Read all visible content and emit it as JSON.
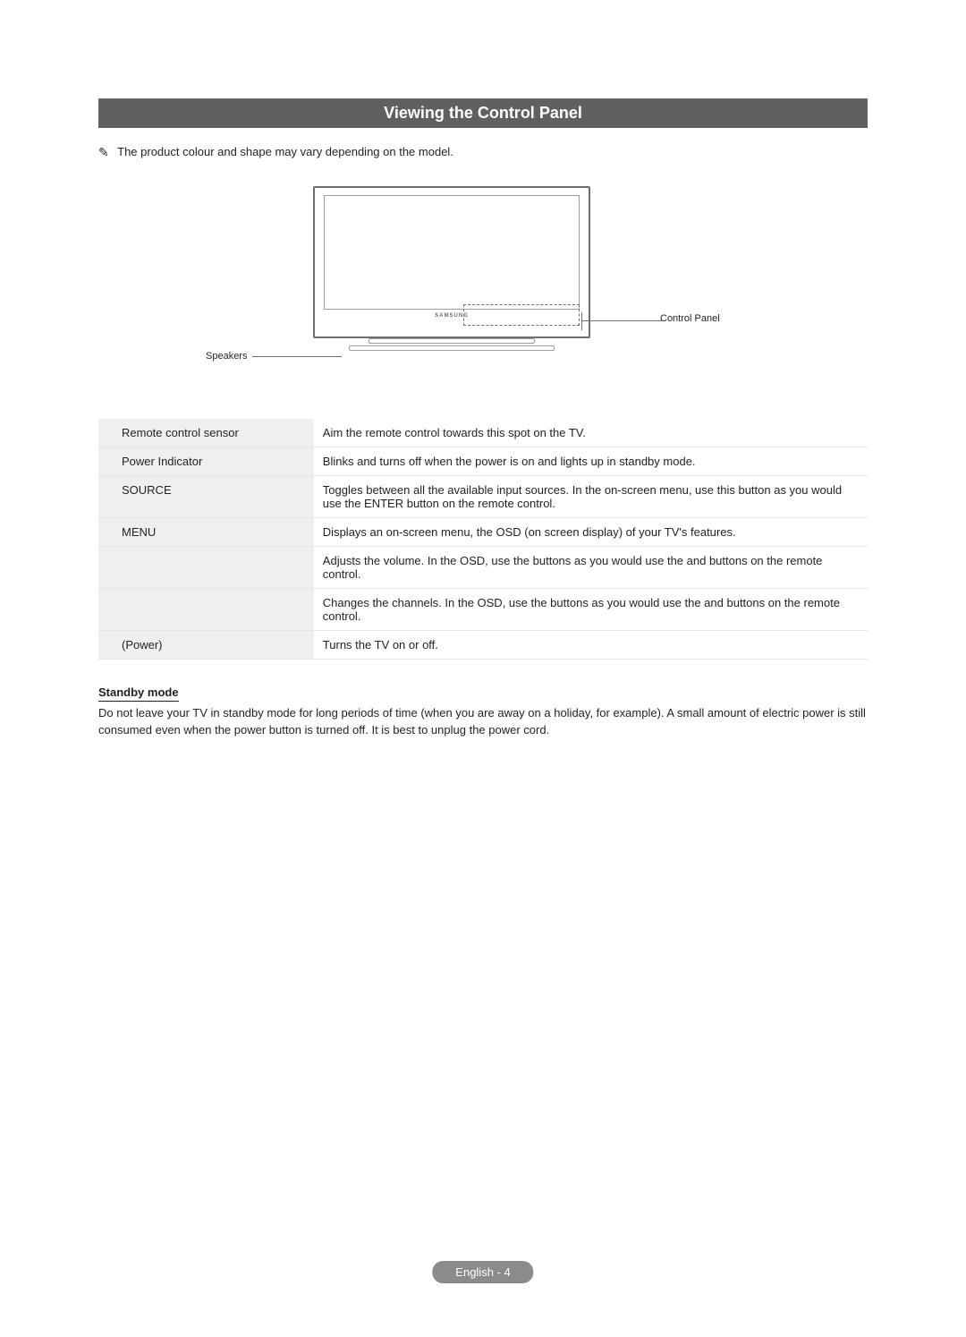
{
  "section_title": "Viewing the Control Panel",
  "note_text": "The product colour and shape may vary depending on the model.",
  "diagram": {
    "logo": "SAMSUNG",
    "callout_right": "Control Panel",
    "callout_left": "Speakers"
  },
  "table": {
    "rows": [
      {
        "key": "Remote control sensor",
        "desc": "Aim the remote control towards this spot on the TV."
      },
      {
        "key": "Power Indicator",
        "desc": "Blinks and turns off when the power is on and lights up in standby mode."
      },
      {
        "key": "SOURCE",
        "desc": "Toggles between all the available input sources. In the on-screen menu, use this button as you would use the ENTER       button on the remote control."
      },
      {
        "key": "MENU",
        "desc": "Displays an on-screen menu, the OSD (on screen display) of your TV's features."
      },
      {
        "key": "",
        "desc": "Adjusts the volume. In the OSD, use the                         buttons as you would use the        and       buttons on the remote control."
      },
      {
        "key": "",
        "desc": "Changes the channels. In the OSD, use the                            buttons as you would use the              and       buttons on the remote control."
      },
      {
        "key": "       (Power)",
        "desc": "Turns the TV on or off."
      }
    ]
  },
  "standby": {
    "heading": "Standby mode",
    "body": "Do not leave your TV in standby mode for long periods of time (when you are away on a holiday, for example). A small amount of electric power is still consumed even when the power button is turned off. It is best to unplug the power cord."
  },
  "footer": "English - 4",
  "colors": {
    "bar_bg": "#5f6062",
    "bar_text": "#ffffff",
    "text": "#231f20",
    "row_alt": "#efefef",
    "footer_bg": "#8a8b8d",
    "diagram_stroke": "#6d6e71"
  }
}
